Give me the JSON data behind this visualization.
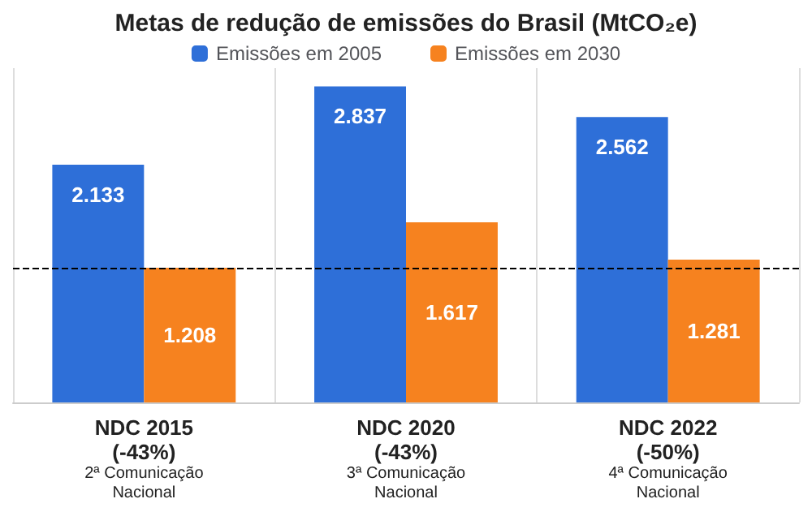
{
  "chart_data": {
    "type": "bar",
    "title": "Metas de redução de emissões do Brasil (MtCO₂e)",
    "categories": [
      "NDC 2015\n(-43%)\n2ª Comunicação\nNacional",
      "NDC 2020\n(-43%)\n3ª Comunicação\nNacional",
      "NDC 2022\n(-50%)\n4ª Comunicação\nNacional"
    ],
    "series": [
      {
        "name": "Emissões em 2005",
        "color": "#2e6fd8",
        "values": [
          2133,
          2837,
          2562
        ],
        "value_labels": [
          "2.133",
          "2.837",
          "2.562"
        ]
      },
      {
        "name": "Emissões em 2030",
        "color": "#f6821f",
        "values": [
          1208,
          1617,
          1281
        ],
        "value_labels": [
          "1.208",
          "1.617",
          "1.281"
        ]
      }
    ],
    "ref_lines": [
      {
        "axis": "y",
        "value": 1208,
        "color": "#000000",
        "line_style": "dashed"
      }
    ],
    "legend": "top",
    "grid": "x"
  }
}
